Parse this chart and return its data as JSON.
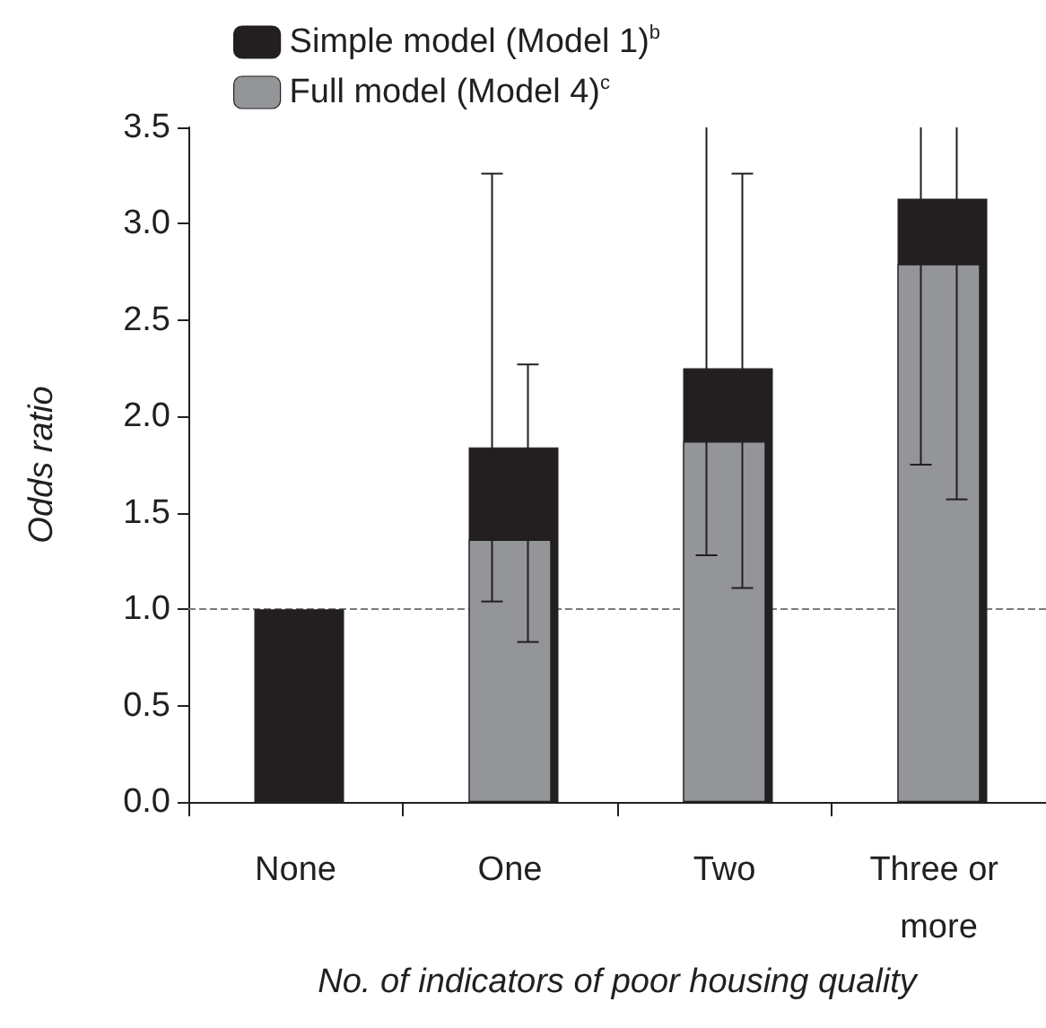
{
  "chart_data": {
    "type": "bar",
    "xlabel": "No. of indicators of poor housing quality",
    "ylabel": "Odds ratio",
    "categories": [
      "None",
      "One",
      "Two",
      "Three or more"
    ],
    "series": [
      {
        "name": "Simple model (Model 1)$^{b}$",
        "color": "#231f20",
        "values": [
          1.0,
          1.84,
          2.25,
          3.13
        ],
        "errors": [
          null,
          [
            1.04,
            3.26
          ],
          [
            1.28,
            3.5
          ],
          [
            1.75,
            3.5
          ]
        ]
      },
      {
        "name": "Full model (Model 4)$^{c}$",
        "color": "#939598",
        "values": [
          null,
          1.36,
          1.87,
          2.79
        ],
        "errors": [
          null,
          [
            0.83,
            2.27
          ],
          [
            1.11,
            3.26
          ],
          [
            1.57,
            3.5
          ]
        ]
      }
    ],
    "ylim": [
      0,
      3.5
    ],
    "yticks": [
      {
        "value": 0,
        "label": "0.0"
      },
      {
        "value": 0.5,
        "label": "0.5"
      },
      {
        "value": 1,
        "label": "1.0"
      },
      {
        "value": 1.5,
        "label": "1.5"
      },
      {
        "value": 2,
        "label": "2.0"
      },
      {
        "value": 2.5,
        "label": "2.5"
      },
      {
        "value": 3,
        "label": "3.0"
      },
      {
        "value": 3.5,
        "label": "3.5"
      }
    ],
    "ref_lines": [
      {
        "axis": "y",
        "value": 1.0,
        "color": "#7a7a7a",
        "line_style": "dashed"
      }
    ],
    "grid": false,
    "legend": "top left"
  }
}
